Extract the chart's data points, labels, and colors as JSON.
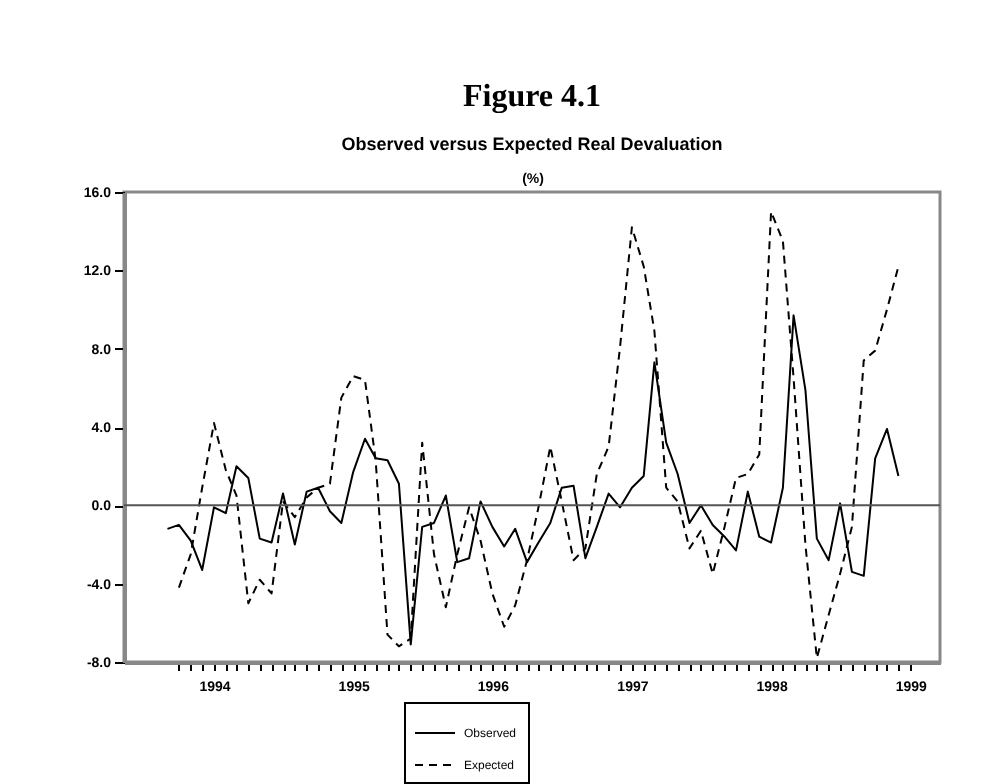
{
  "chart_data": {
    "type": "line",
    "title": "Figure 4.1",
    "subtitle": "Observed versus Expected Real Devaluation",
    "ylabel": "(%)",
    "x": [
      "1993-09",
      "1993-10",
      "1993-11",
      "1993-12",
      "1994-01",
      "1994-02",
      "1994-03",
      "1994-04",
      "1994-05",
      "1994-06",
      "1994-07",
      "1994-08",
      "1994-09",
      "1994-10",
      "1994-11",
      "1994-12",
      "1995-01",
      "1995-02",
      "1995-03",
      "1995-04",
      "1995-05",
      "1995-06",
      "1995-07",
      "1995-08",
      "1995-09",
      "1995-10",
      "1995-11",
      "1995-12",
      "1996-01",
      "1996-02",
      "1996-03",
      "1996-04",
      "1996-05",
      "1996-06",
      "1996-07",
      "1996-08",
      "1996-09",
      "1996-10",
      "1996-11",
      "1996-12",
      "1997-01",
      "1997-02",
      "1997-03",
      "1997-04",
      "1997-05",
      "1997-06",
      "1997-07",
      "1997-08",
      "1997-09",
      "1997-10",
      "1997-11",
      "1997-12",
      "1998-01",
      "1998-02",
      "1998-03",
      "1998-04",
      "1998-05",
      "1998-06",
      "1998-07",
      "1998-08",
      "1998-09",
      "1998-10",
      "1998-11",
      "1998-12"
    ],
    "series": [
      {
        "name": "Observed",
        "color": "#000000",
        "line_style": "solid",
        "values": [
          -1.2,
          -1.0,
          -1.8,
          -3.3,
          -0.1,
          -0.4,
          2.0,
          1.4,
          -1.7,
          -1.9,
          0.6,
          -2.0,
          0.7,
          0.9,
          -0.3,
          -0.9,
          1.7,
          3.4,
          2.4,
          2.3,
          1.1,
          -7.1,
          -1.1,
          -0.9,
          0.5,
          -2.9,
          -2.7,
          0.2,
          -1.1,
          -2.1,
          -1.2,
          -2.9,
          -1.9,
          -0.9,
          0.9,
          1.0,
          -2.7,
          -1.1,
          0.6,
          -0.1,
          0.9,
          1.5,
          7.3,
          3.2,
          1.6,
          -0.9,
          0.0,
          -1.0,
          -1.6,
          -2.3,
          0.7,
          -1.6,
          -1.9,
          0.9,
          9.7,
          5.9,
          -1.7,
          -2.8,
          0.1,
          -3.4,
          -3.6,
          2.4,
          3.9,
          1.5
        ]
      },
      {
        "name": "Expected",
        "color": "#000000",
        "line_style": "dashed",
        "values": [
          null,
          -4.2,
          -2.5,
          0.9,
          4.2,
          1.8,
          0.5,
          -5.0,
          -3.8,
          -4.5,
          0.2,
          -0.6,
          0.4,
          0.9,
          1.1,
          5.5,
          6.6,
          6.4,
          2.3,
          -6.6,
          -7.2,
          -6.8,
          3.2,
          -2.5,
          -5.2,
          -2.5,
          -0.1,
          -1.8,
          -4.5,
          -6.2,
          -5.1,
          -2.8,
          -0.1,
          3.0,
          0.2,
          -2.8,
          -2.2,
          1.6,
          3.0,
          8.1,
          14.2,
          12.2,
          8.9,
          0.9,
          0.2,
          -2.2,
          -1.3,
          -3.5,
          -1.1,
          1.4,
          1.6,
          2.6,
          15.0,
          13.5,
          6.5,
          -2.0,
          -7.8,
          -5.6,
          -3.5,
          -1.1,
          7.4,
          7.9,
          10.0,
          12.2
        ]
      }
    ],
    "xlim": [
      "1993-05-10",
      "1999-03-20"
    ],
    "xticks": [
      {
        "value": "1993-10",
        "label": null
      },
      {
        "value": "1993-11",
        "label": null
      },
      {
        "value": "1993-12",
        "label": null
      },
      "1994",
      {
        "value": "1994-02",
        "label": null
      },
      {
        "value": "1994-03",
        "label": null
      },
      {
        "value": "1994-04",
        "label": null
      },
      {
        "value": "1994-05",
        "label": null
      },
      {
        "value": "1994-06",
        "label": null
      },
      {
        "value": "1994-07",
        "label": null
      },
      {
        "value": "1994-08",
        "label": null
      },
      {
        "value": "1994-09",
        "label": null
      },
      {
        "value": "1994-10",
        "label": null
      },
      {
        "value": "1994-11",
        "label": null
      },
      {
        "value": "1994-12",
        "label": null
      },
      "1995",
      {
        "value": "1995-02",
        "label": null
      },
      {
        "value": "1995-03",
        "label": null
      },
      {
        "value": "1995-04",
        "label": null
      },
      {
        "value": "1995-05",
        "label": null
      },
      {
        "value": "1995-06",
        "label": null
      },
      {
        "value": "1995-07",
        "label": null
      },
      {
        "value": "1995-08",
        "label": null
      },
      {
        "value": "1995-09",
        "label": null
      },
      {
        "value": "1995-10",
        "label": null
      },
      {
        "value": "1995-11",
        "label": null
      },
      {
        "value": "1995-12",
        "label": null
      },
      "1996",
      {
        "value": "1996-02",
        "label": null
      },
      {
        "value": "1996-03",
        "label": null
      },
      {
        "value": "1996-04",
        "label": null
      },
      {
        "value": "1996-05",
        "label": null
      },
      {
        "value": "1996-06",
        "label": null
      },
      {
        "value": "1996-07",
        "label": null
      },
      {
        "value": "1996-08",
        "label": null
      },
      {
        "value": "1996-09",
        "label": null
      },
      {
        "value": "1996-10",
        "label": null
      },
      {
        "value": "1996-11",
        "label": null
      },
      {
        "value": "1996-12",
        "label": null
      },
      "1997",
      {
        "value": "1997-02",
        "label": null
      },
      {
        "value": "1997-03",
        "label": null
      },
      {
        "value": "1997-04",
        "label": null
      },
      {
        "value": "1997-05",
        "label": null
      },
      {
        "value": "1997-06",
        "label": null
      },
      {
        "value": "1997-07",
        "label": null
      },
      {
        "value": "1997-08",
        "label": null
      },
      {
        "value": "1997-09",
        "label": null
      },
      {
        "value": "1997-10",
        "label": null
      },
      {
        "value": "1997-11",
        "label": null
      },
      {
        "value": "1997-12",
        "label": null
      },
      "1998",
      {
        "value": "1998-02",
        "label": null
      },
      {
        "value": "1998-03",
        "label": null
      },
      {
        "value": "1998-04",
        "label": null
      },
      {
        "value": "1998-05",
        "label": null
      },
      {
        "value": "1998-06",
        "label": null
      },
      {
        "value": "1998-07",
        "label": null
      },
      {
        "value": "1998-08",
        "label": null
      },
      {
        "value": "1998-09",
        "label": null
      },
      {
        "value": "1998-10",
        "label": null
      },
      {
        "value": "1998-11",
        "label": null
      },
      {
        "value": "1998-12",
        "label": null
      },
      "1999"
    ],
    "ylim": [
      -8,
      16
    ],
    "yticks": [
      {
        "value": -8,
        "label": "-8.0"
      },
      {
        "value": -4,
        "label": "-4.0"
      },
      {
        "value": 0,
        "label": "0.0"
      },
      {
        "value": 4,
        "label": "4.0"
      },
      {
        "value": 8,
        "label": "8.0"
      },
      {
        "value": 12,
        "label": "12.0"
      },
      {
        "value": 16,
        "label": "16.0"
      }
    ],
    "ref_lines": [
      {
        "axis": "y",
        "value": 0,
        "color": "#555555"
      }
    ],
    "grid": false,
    "legend": "bottom"
  }
}
